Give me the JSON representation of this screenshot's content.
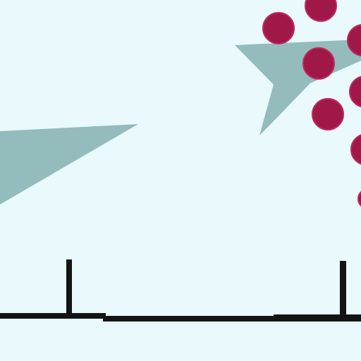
{
  "scene": {
    "background_color": "#e9f9fc",
    "shard_color": "#94bcbc",
    "orb_color": "#a01848",
    "orb_highlight_color": "#c02860",
    "ground_color": "#141414",
    "orb_count": 8,
    "post_count": 2
  }
}
